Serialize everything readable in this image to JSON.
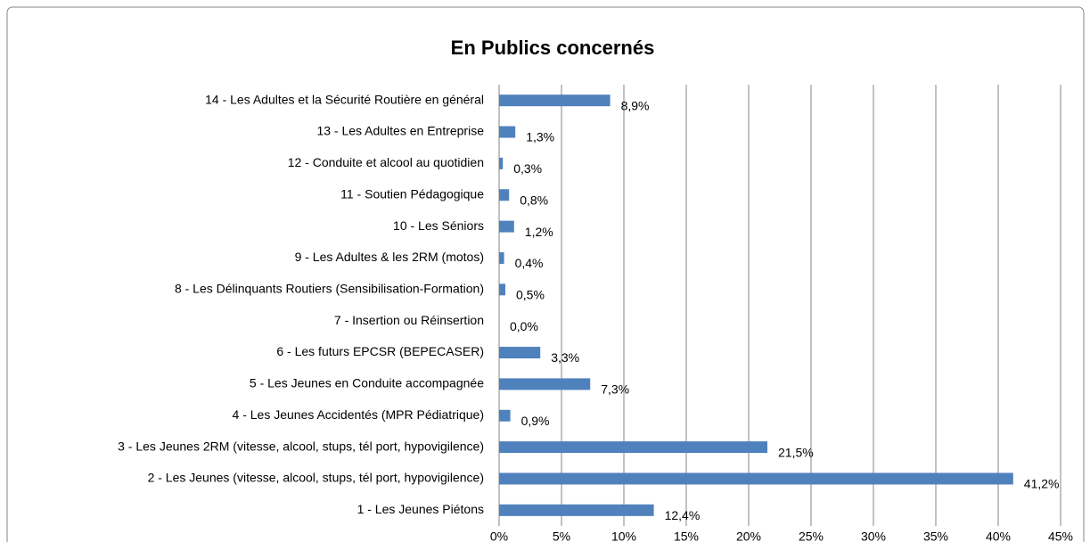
{
  "chart_data": {
    "type": "bar",
    "orientation": "horizontal",
    "title": "En Publics concernés",
    "categories": [
      "14 - Les Adultes et la Sécurité Routière en général",
      "13 - Les Adultes en Entreprise",
      "12 - Conduite et alcool au quotidien",
      "11 - Soutien Pédagogique",
      "10 - Les Séniors",
      "9 - Les Adultes & les 2RM (motos)",
      "8 - Les Délinquants Routiers (Sensibilisation-Formation)",
      "7 - Insertion ou Réinsertion",
      "6 - Les futurs EPCSR (BEPECASER)",
      "5 - Les Jeunes en Conduite accompagnée",
      "4 - Les Jeunes Accidentés (MPR Pédiatrique)",
      "3 - Les Jeunes 2RM (vitesse, alcool, stups, tél port, hypovigilence)",
      "2 - Les Jeunes (vitesse, alcool, stups, tél port, hypovigilence)",
      "1 - Les Jeunes Piétons"
    ],
    "values": [
      8.9,
      1.3,
      0.3,
      0.8,
      1.2,
      0.4,
      0.5,
      0.0,
      3.3,
      7.3,
      0.9,
      21.5,
      41.2,
      12.4
    ],
    "value_labels": [
      "8,9%",
      "1,3%",
      "0,3%",
      "0,8%",
      "1,2%",
      "0,4%",
      "0,5%",
      "0,0%",
      "3,3%",
      "7,3%",
      "0,9%",
      "21,5%",
      "41,2%",
      "12,4%"
    ],
    "color": "#4f81bd",
    "xlim": [
      0,
      45
    ],
    "xticks": [
      {
        "value": 0,
        "label": "0%"
      },
      {
        "value": 5,
        "label": "5%"
      },
      {
        "value": 10,
        "label": "10%"
      },
      {
        "value": 15,
        "label": "15%"
      },
      {
        "value": 20,
        "label": "20%"
      },
      {
        "value": 25,
        "label": "25%"
      },
      {
        "value": 30,
        "label": "30%"
      },
      {
        "value": 35,
        "label": "35%"
      },
      {
        "value": 40,
        "label": "40%"
      },
      {
        "value": 45,
        "label": "45%"
      }
    ],
    "grid": true
  }
}
